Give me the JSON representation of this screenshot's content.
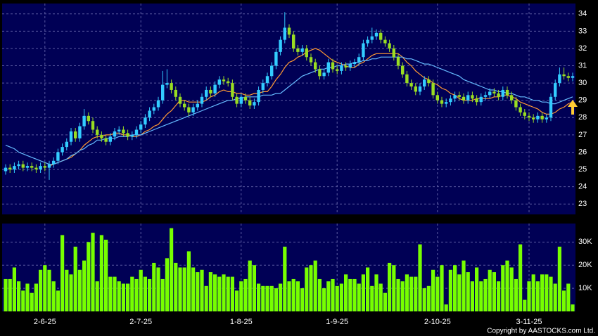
{
  "chart_data": [
    {
      "type": "candlestick",
      "up_color": "#33ccff",
      "down_color": "#99dd22",
      "ylim": [
        22.4,
        34.6
      ],
      "yticks": [
        23,
        24,
        25,
        26,
        27,
        28,
        29,
        30,
        31,
        32,
        33,
        34
      ],
      "grid": true,
      "open": [
        24.9,
        25.1,
        25.0,
        25.2,
        25.3,
        25.1,
        25.2,
        25.1,
        25.0,
        25.2,
        25.1,
        25.3,
        25.5,
        26.0,
        26.3,
        26.6,
        27.2,
        26.8,
        27.5,
        28.1,
        27.8,
        27.3,
        27.0,
        26.8,
        26.6,
        26.9,
        27.2,
        27.3,
        27.1,
        26.9,
        27.0,
        27.3,
        27.6,
        28.0,
        28.4,
        28.6,
        29.0,
        29.9,
        30.0,
        29.6,
        29.2,
        28.8,
        28.6,
        28.3,
        28.6,
        28.8,
        29.2,
        29.6,
        29.4,
        29.9,
        30.2,
        30.1,
        30.0,
        29.2,
        28.8,
        29.2,
        29.0,
        28.7,
        28.9,
        29.6,
        30.0,
        30.4,
        31.0,
        31.8,
        32.5,
        33.2,
        32.8,
        32.0,
        31.8,
        32.0,
        31.5,
        31.2,
        30.8,
        30.4,
        30.6,
        31.2,
        30.8,
        30.7,
        31.0,
        30.9,
        31.1,
        31.2,
        31.5,
        32.3,
        32.5,
        32.7,
        32.9,
        32.5,
        32.3,
        32.0,
        31.5,
        31.0,
        30.5,
        30.0,
        29.8,
        29.5,
        29.8,
        30.2,
        30.0,
        29.3,
        29.0,
        28.8,
        28.9,
        29.1,
        29.3,
        29.2,
        29.0,
        29.3,
        29.1,
        28.9,
        29.2,
        29.3,
        29.5,
        29.4,
        29.2,
        29.6,
        29.3,
        29.0,
        28.6,
        28.3,
        28.1,
        28.0,
        27.9,
        28.1,
        27.9,
        28.0,
        29.2,
        30.0,
        30.5,
        30.4,
        30.3
      ],
      "high": [
        25.3,
        25.3,
        25.4,
        25.5,
        25.5,
        25.4,
        25.4,
        25.3,
        25.4,
        25.4,
        25.5,
        25.7,
        26.2,
        26.5,
        26.8,
        27.4,
        27.4,
        27.7,
        28.5,
        28.3,
        28.0,
        27.5,
        27.2,
        27.0,
        27.1,
        27.4,
        27.5,
        27.5,
        27.3,
        27.2,
        27.5,
        27.8,
        28.2,
        28.6,
        28.8,
        29.2,
        30.7,
        30.8,
        30.2,
        29.8,
        29.4,
        29.0,
        28.8,
        28.8,
        29.0,
        29.4,
        29.8,
        29.8,
        30.1,
        30.4,
        30.4,
        30.3,
        30.2,
        29.4,
        29.4,
        29.4,
        29.2,
        29.1,
        29.8,
        30.2,
        30.6,
        31.2,
        32.0,
        32.7,
        34.1,
        33.4,
        33.0,
        32.2,
        32.2,
        32.2,
        31.7,
        31.4,
        31.0,
        30.8,
        31.4,
        31.4,
        31.0,
        31.2,
        31.2,
        31.3,
        31.4,
        31.7,
        32.5,
        32.7,
        33.2,
        33.1,
        33.1,
        32.7,
        32.5,
        32.2,
        31.7,
        31.2,
        30.7,
        30.2,
        30.0,
        30.0,
        30.4,
        30.4,
        30.2,
        29.5,
        29.2,
        29.1,
        29.3,
        29.5,
        29.5,
        29.4,
        29.5,
        29.5,
        29.3,
        29.4,
        29.5,
        29.7,
        29.7,
        29.6,
        29.8,
        29.8,
        29.5,
        29.2,
        28.8,
        28.5,
        28.3,
        28.2,
        28.3,
        28.3,
        28.2,
        29.4,
        30.2,
        30.9,
        30.9,
        30.6,
        30.6
      ],
      "low": [
        24.7,
        24.8,
        24.8,
        25.0,
        24.9,
        24.9,
        24.9,
        24.8,
        24.8,
        24.9,
        24.4,
        25.1,
        25.3,
        25.8,
        26.1,
        26.4,
        26.6,
        26.6,
        27.3,
        27.6,
        27.1,
        26.8,
        26.6,
        26.4,
        26.4,
        26.7,
        27.0,
        26.9,
        26.7,
        26.7,
        26.8,
        27.1,
        27.4,
        27.8,
        28.2,
        28.4,
        28.8,
        29.7,
        29.4,
        29.0,
        28.6,
        28.4,
        28.1,
        28.1,
        28.4,
        28.6,
        29.0,
        29.2,
        29.2,
        29.7,
        29.9,
        29.8,
        29.0,
        28.6,
        28.6,
        28.8,
        28.5,
        28.5,
        28.7,
        29.4,
        29.8,
        30.2,
        30.8,
        31.6,
        32.3,
        32.6,
        31.8,
        31.6,
        31.6,
        31.3,
        31.0,
        30.6,
        30.2,
        30.2,
        30.4,
        30.6,
        30.5,
        30.5,
        30.7,
        30.7,
        30.9,
        31.0,
        31.3,
        32.1,
        32.3,
        32.5,
        32.3,
        32.1,
        31.8,
        31.3,
        30.8,
        30.3,
        29.8,
        29.6,
        29.3,
        29.3,
        29.6,
        29.8,
        29.1,
        28.8,
        28.6,
        28.6,
        28.7,
        28.9,
        29.0,
        28.8,
        28.8,
        28.9,
        28.7,
        28.7,
        29.0,
        29.1,
        29.2,
        29.0,
        29.0,
        29.1,
        28.8,
        28.4,
        28.1,
        27.9,
        27.8,
        27.7,
        27.7,
        27.7,
        27.7,
        27.8,
        29.0,
        29.8,
        30.2,
        30.1,
        30.1
      ],
      "close": [
        25.1,
        25.0,
        25.2,
        25.3,
        25.1,
        25.2,
        25.1,
        25.0,
        25.2,
        25.1,
        25.3,
        25.5,
        26.0,
        26.3,
        26.6,
        27.2,
        26.8,
        27.5,
        28.1,
        27.8,
        27.3,
        27.0,
        26.8,
        26.6,
        26.9,
        27.2,
        27.3,
        27.1,
        26.9,
        27.0,
        27.3,
        27.6,
        28.0,
        28.4,
        28.6,
        29.0,
        29.9,
        30.0,
        29.6,
        29.2,
        28.8,
        28.6,
        28.3,
        28.6,
        28.8,
        29.2,
        29.6,
        29.4,
        29.9,
        30.2,
        30.1,
        30.0,
        29.2,
        28.8,
        29.2,
        29.0,
        28.7,
        28.9,
        29.6,
        30.0,
        30.4,
        31.0,
        31.8,
        32.5,
        33.2,
        32.8,
        32.0,
        31.8,
        32.0,
        31.5,
        31.2,
        30.8,
        30.4,
        30.6,
        31.2,
        30.8,
        30.7,
        31.0,
        30.9,
        31.1,
        31.2,
        31.5,
        32.3,
        32.5,
        32.7,
        32.9,
        32.5,
        32.3,
        32.0,
        31.5,
        31.0,
        30.5,
        30.0,
        29.8,
        29.5,
        29.8,
        30.2,
        30.0,
        29.3,
        29.0,
        28.8,
        28.9,
        29.1,
        29.3,
        29.2,
        29.0,
        29.3,
        29.1,
        28.9,
        29.2,
        29.3,
        29.5,
        29.4,
        29.2,
        29.6,
        29.3,
        29.0,
        28.6,
        28.3,
        28.1,
        28.0,
        27.9,
        28.1,
        27.9,
        28.0,
        29.2,
        30.0,
        30.5,
        30.4,
        30.3,
        30.4
      ],
      "series": [
        {
          "color": "#ff9933",
          "values": [
            null,
            null,
            null,
            null,
            null,
            null,
            null,
            null,
            null,
            null,
            25.2,
            25.3,
            25.4,
            25.5,
            25.6,
            25.7,
            25.9,
            26.1,
            26.4,
            26.6,
            26.8,
            26.9,
            26.9,
            27.0,
            27.0,
            27.1,
            27.1,
            27.0,
            27.0,
            26.9,
            26.9,
            27.0,
            27.2,
            27.3,
            27.5,
            27.6,
            27.9,
            28.2,
            28.4,
            28.7,
            29.0,
            29.0,
            28.9,
            28.9,
            28.9,
            28.9,
            29.0,
            29.2,
            29.3,
            29.5,
            29.6,
            29.5,
            29.5,
            29.4,
            29.4,
            29.3,
            29.3,
            29.4,
            29.4,
            29.5,
            29.5,
            29.8,
            30.2,
            30.5,
            30.9,
            31.2,
            31.3,
            31.5,
            31.6,
            31.8,
            31.9,
            32.0,
            31.9,
            31.7,
            31.5,
            31.3,
            31.2,
            31.1,
            31.0,
            30.9,
            30.9,
            31.1,
            31.2,
            31.4,
            31.6,
            31.7,
            31.7,
            31.7,
            31.7,
            31.7,
            31.7,
            31.5,
            31.2,
            31.0,
            30.7,
            30.5,
            30.3,
            30.2,
            30.0,
            29.9,
            29.7,
            29.6,
            29.4,
            29.3,
            29.1,
            29.0,
            29.0,
            29.0,
            29.1,
            29.1,
            29.1,
            29.1,
            29.2,
            29.2,
            29.3,
            29.3,
            29.2,
            29.1,
            28.9,
            28.8,
            28.7,
            28.6,
            28.5,
            28.3,
            28.2,
            28.2,
            28.3,
            28.5,
            28.6,
            28.8,
            28.9
          ]
        },
        {
          "color": "#66bbff",
          "values": [
            26.4,
            26.3,
            26.2,
            26.0,
            25.9,
            25.8,
            25.7,
            25.6,
            25.5,
            25.4,
            25.3,
            25.3,
            25.4,
            25.5,
            25.6,
            25.8,
            25.9,
            26.1,
            26.2,
            26.4,
            26.5,
            26.7,
            26.7,
            26.8,
            26.8,
            26.8,
            26.9,
            26.9,
            26.9,
            27.0,
            27.0,
            27.0,
            27.1,
            27.2,
            27.3,
            27.4,
            27.5,
            27.6,
            27.7,
            27.8,
            27.9,
            28.0,
            28.1,
            28.2,
            28.3,
            28.4,
            28.5,
            28.6,
            28.7,
            28.8,
            28.9,
            29.0,
            29.0,
            29.1,
            29.1,
            29.2,
            29.2,
            29.2,
            29.2,
            29.3,
            29.3,
            29.3,
            29.4,
            29.4,
            29.6,
            29.8,
            30.0,
            30.2,
            30.4,
            30.5,
            30.6,
            30.7,
            30.8,
            30.8,
            30.9,
            30.9,
            31.0,
            31.0,
            31.1,
            31.1,
            31.2,
            31.2,
            31.3,
            31.3,
            31.4,
            31.4,
            31.5,
            31.5,
            31.5,
            31.5,
            31.5,
            31.5,
            31.4,
            31.4,
            31.3,
            31.2,
            31.1,
            31.1,
            31.0,
            30.9,
            30.8,
            30.7,
            30.6,
            30.5,
            30.4,
            30.2,
            30.1,
            30.0,
            29.9,
            29.8,
            29.7,
            29.6,
            29.6,
            29.5,
            29.5,
            29.4,
            29.4,
            29.3,
            29.2,
            29.2,
            29.1,
            29.0,
            29.0,
            28.9,
            28.9,
            28.8,
            28.8,
            28.9,
            29.0,
            29.1,
            29.2
          ]
        }
      ]
    },
    {
      "type": "bar",
      "color": "#77ff00",
      "categories": [
        null,
        null,
        null,
        null,
        null,
        null,
        null,
        null,
        null,
        "2-6-25",
        null,
        null,
        null,
        null,
        null,
        null,
        null,
        null,
        null,
        null,
        null,
        null,
        null,
        null,
        null,
        null,
        null,
        null,
        null,
        null,
        null,
        "2-7-25",
        null,
        null,
        null,
        null,
        null,
        null,
        null,
        null,
        null,
        null,
        null,
        null,
        null,
        null,
        null,
        null,
        null,
        null,
        null,
        null,
        null,
        null,
        "1-8-25",
        null,
        null,
        null,
        null,
        null,
        null,
        null,
        null,
        null,
        null,
        null,
        null,
        null,
        null,
        null,
        null,
        null,
        null,
        null,
        null,
        null,
        "1-9-25",
        null,
        null,
        null,
        null,
        null,
        null,
        null,
        null,
        null,
        null,
        null,
        null,
        null,
        null,
        null,
        null,
        null,
        null,
        null,
        null,
        null,
        null,
        "2-10-25",
        null,
        null,
        null,
        null,
        null,
        null,
        null,
        null,
        null,
        null,
        null,
        null,
        null,
        null,
        null,
        null,
        null,
        null,
        null,
        null,
        "3-11-25",
        null,
        null,
        null,
        null,
        null,
        null,
        null,
        null,
        null,
        null
      ],
      "values": [
        14000,
        14000,
        19000,
        13000,
        9000,
        12000,
        8000,
        12000,
        18000,
        20000,
        18000,
        13000,
        9000,
        33000,
        18000,
        16000,
        28000,
        18000,
        22000,
        30000,
        34000,
        13000,
        33000,
        31000,
        15000,
        15000,
        13000,
        12000,
        12000,
        15000,
        14000,
        18000,
        15000,
        14000,
        21000,
        19000,
        14000,
        23000,
        36000,
        21000,
        19000,
        19000,
        26000,
        19000,
        17000,
        18000,
        11000,
        17000,
        16000,
        15000,
        16000,
        15000,
        15000,
        9000,
        13000,
        14000,
        22000,
        20000,
        12000,
        11000,
        11000,
        11000,
        10000,
        12000,
        28000,
        13000,
        14000,
        13000,
        10000,
        19000,
        20000,
        22000,
        14000,
        10000,
        13000,
        14000,
        11000,
        12000,
        16000,
        14000,
        14000,
        12000,
        16000,
        19000,
        11000,
        16000,
        12000,
        8000,
        21000,
        20000,
        14000,
        13000,
        16000,
        15000,
        15000,
        29000,
        10000,
        11000,
        18000,
        15000,
        20000,
        3000,
        18000,
        20000,
        16000,
        22000,
        17000,
        13000,
        19000,
        13000,
        14000,
        18000,
        17000,
        13000,
        20000,
        22000,
        19000,
        14000,
        29000,
        5000,
        13000,
        16000,
        13000,
        16000,
        16000,
        15000,
        12000,
        28000,
        9000,
        12000,
        3000
      ],
      "ylim": [
        0,
        38000
      ],
      "yticks": [
        {
          "value": 10000,
          "label": "10K"
        },
        {
          "value": 20000,
          "label": "20K"
        },
        {
          "value": 30000,
          "label": "30K"
        }
      ],
      "grid": true
    }
  ],
  "footer": "Copyright by AASTOCKS.com Ltd."
}
